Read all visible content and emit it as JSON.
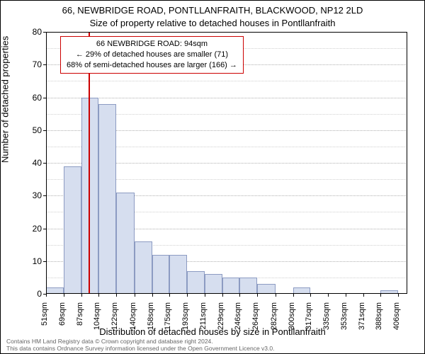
{
  "titles": {
    "main": "66, NEWBRIDGE ROAD, PONTLLANFRAITH, BLACKWOOD, NP12 2LD",
    "sub": "Size of property relative to detached houses in Pontllanfraith",
    "title_fontsize": 13,
    "title_color": "#000000"
  },
  "chart": {
    "type": "histogram",
    "background_color": "#ffffff",
    "plot_border_color": "#000000",
    "xlim": [
      51,
      415
    ],
    "ylim": [
      0,
      80
    ],
    "grid_major_color": "#b0b0b0",
    "grid_minor_color": "#d0d0d0",
    "grid_major_step": 10,
    "grid_minor_step": 5,
    "bar_fill_color": "#d6deef",
    "bar_border_color": "#8c9bc2",
    "bins_x": [
      51,
      69,
      87,
      104,
      122,
      140,
      158,
      175,
      193,
      211,
      229,
      246,
      264,
      282,
      300,
      317,
      335,
      353,
      371,
      388,
      406
    ],
    "values": [
      2,
      39,
      60,
      58,
      31,
      16,
      12,
      12,
      7,
      6,
      5,
      5,
      3,
      0,
      2,
      0,
      0,
      0,
      0,
      1
    ],
    "vline_value": 94,
    "vline_color": "#cc0000",
    "yticks": [
      0,
      10,
      20,
      30,
      40,
      50,
      60,
      70,
      80
    ],
    "xtick_labels": [
      "51sqm",
      "69sqm",
      "87sqm",
      "104sqm",
      "122sqm",
      "140sqm",
      "158sqm",
      "175sqm",
      "193sqm",
      "211sqm",
      "229sqm",
      "246sqm",
      "264sqm",
      "282sqm",
      "300sqm",
      "317sqm",
      "335sqm",
      "353sqm",
      "371sqm",
      "388sqm",
      "406sqm"
    ]
  },
  "axes": {
    "y_label": "Number of detached properties",
    "x_label": "Distribution of detached houses by size in Pontllanfraith",
    "label_fontsize": 13,
    "tick_fontsize": 12,
    "tick_color": "#000000"
  },
  "annotation": {
    "line1": "66 NEWBRIDGE ROAD: 94sqm",
    "line2": "← 29% of detached houses are smaller (71)",
    "line3": "68% of semi-detached houses are larger (166) →",
    "border_color": "#cc0000",
    "text_color": "#000000",
    "fontsize": 11
  },
  "footer": {
    "line1": "Contains HM Land Registry data © Crown copyright and database right 2024.",
    "line2": "This data contains Ordnance Survey information licensed under the Open Government Licence v3.0."
  }
}
